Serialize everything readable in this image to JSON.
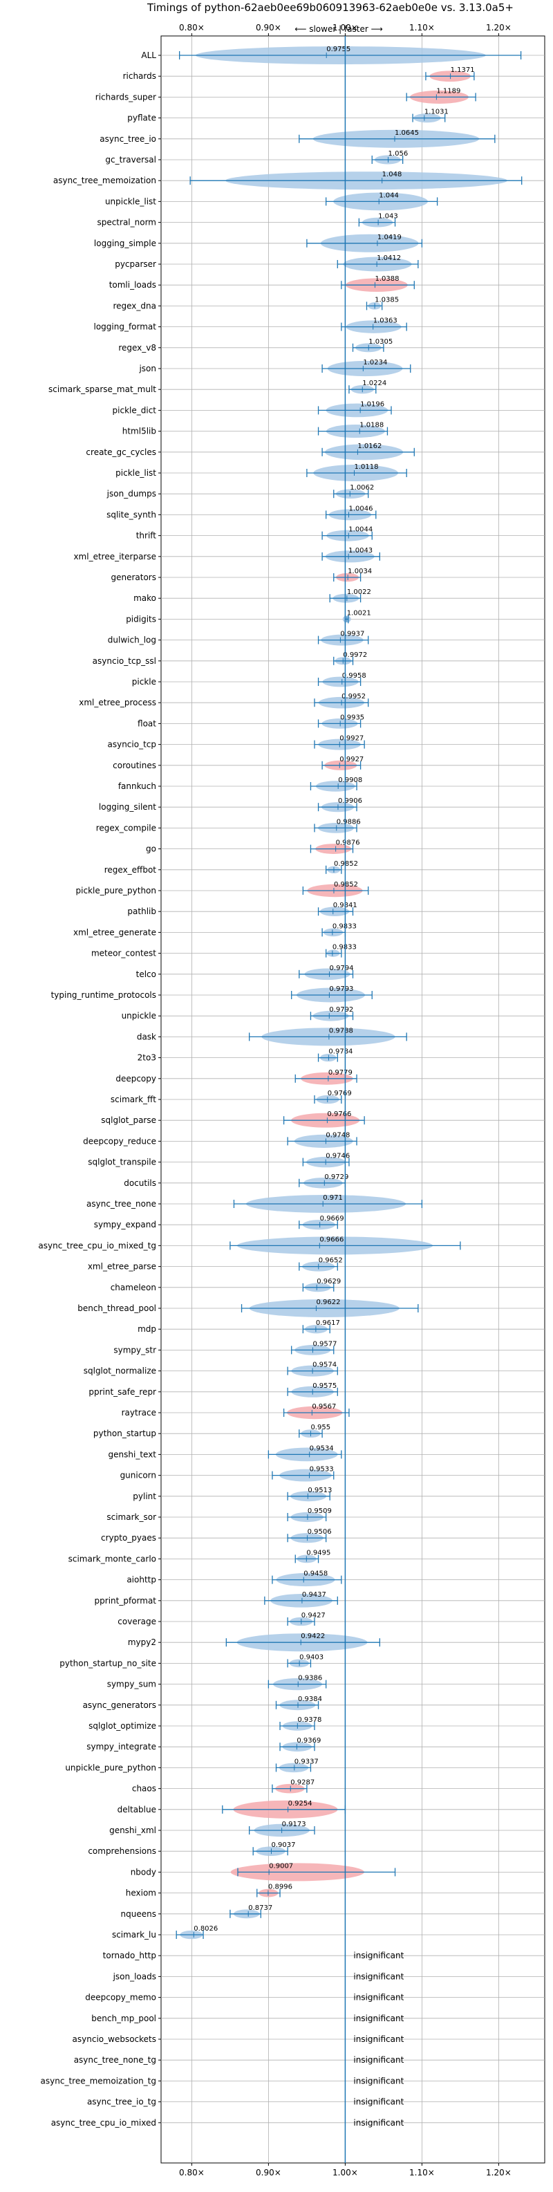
{
  "chart_data": {
    "type": "violin",
    "title": "Timings of python-62aeb0ee69b060913963-62aeb0e0e vs. 3.13.0a5+",
    "direction_note": "⟵ slower | faster ⟶",
    "xlim": [
      0.76,
      1.26
    ],
    "xticks": [
      0.8,
      0.9,
      1.0,
      1.1,
      1.2
    ],
    "xtick_labels": [
      "0.80×",
      "0.90×",
      "1.00×",
      "1.10×",
      "1.20×"
    ],
    "grid": true,
    "insignificant_label": "insignificant",
    "colors": {
      "faster": "#a9c9e6",
      "slower": "#f4a9ad",
      "line": "#1f77b4",
      "grid": "#b0b0b0"
    },
    "benchmarks": [
      {
        "name": "ALL",
        "value": 0.9755,
        "min": 0.784,
        "max": 1.229,
        "color": "faster"
      },
      {
        "name": "richards",
        "value": 1.1371,
        "min": 1.105,
        "max": 1.168,
        "color": "slower"
      },
      {
        "name": "richards_super",
        "value": 1.1189,
        "min": 1.08,
        "max": 1.17,
        "color": "slower"
      },
      {
        "name": "pyflate",
        "value": 1.1031,
        "min": 1.088,
        "max": 1.13,
        "color": "faster"
      },
      {
        "name": "async_tree_io",
        "value": 1.0645,
        "min": 0.94,
        "max": 1.195,
        "color": "faster"
      },
      {
        "name": "gc_traversal",
        "value": 1.056,
        "min": 1.035,
        "max": 1.075,
        "color": "faster"
      },
      {
        "name": "async_tree_memoization",
        "value": 1.048,
        "min": 0.798,
        "max": 1.23,
        "color": "faster"
      },
      {
        "name": "unpickle_list",
        "value": 1.044,
        "min": 0.975,
        "max": 1.12,
        "color": "faster"
      },
      {
        "name": "spectral_norm",
        "value": 1.043,
        "min": 1.018,
        "max": 1.065,
        "color": "faster"
      },
      {
        "name": "logging_simple",
        "value": 1.0419,
        "min": 0.95,
        "max": 1.1,
        "color": "faster"
      },
      {
        "name": "pycparser",
        "value": 1.0412,
        "min": 0.99,
        "max": 1.095,
        "color": "faster"
      },
      {
        "name": "tomli_loads",
        "value": 1.0388,
        "min": 0.995,
        "max": 1.09,
        "color": "slower"
      },
      {
        "name": "regex_dna",
        "value": 1.0385,
        "min": 1.028,
        "max": 1.048,
        "color": "faster"
      },
      {
        "name": "logging_format",
        "value": 1.0363,
        "min": 0.995,
        "max": 1.08,
        "color": "faster"
      },
      {
        "name": "regex_v8",
        "value": 1.0305,
        "min": 1.01,
        "max": 1.05,
        "color": "faster"
      },
      {
        "name": "json",
        "value": 1.0234,
        "min": 0.97,
        "max": 1.085,
        "color": "faster"
      },
      {
        "name": "scimark_sparse_mat_mult",
        "value": 1.0224,
        "min": 1.005,
        "max": 1.04,
        "color": "faster"
      },
      {
        "name": "pickle_dict",
        "value": 1.0196,
        "min": 0.965,
        "max": 1.06,
        "color": "faster"
      },
      {
        "name": "html5lib",
        "value": 1.0188,
        "min": 0.965,
        "max": 1.055,
        "color": "faster"
      },
      {
        "name": "create_gc_cycles",
        "value": 1.0162,
        "min": 0.97,
        "max": 1.09,
        "color": "faster"
      },
      {
        "name": "pickle_list",
        "value": 1.0118,
        "min": 0.95,
        "max": 1.08,
        "color": "faster"
      },
      {
        "name": "json_dumps",
        "value": 1.0062,
        "min": 0.985,
        "max": 1.03,
        "color": "faster"
      },
      {
        "name": "sqlite_synth",
        "value": 1.0046,
        "min": 0.975,
        "max": 1.04,
        "color": "faster"
      },
      {
        "name": "thrift",
        "value": 1.0044,
        "min": 0.97,
        "max": 1.035,
        "color": "faster"
      },
      {
        "name": "xml_etree_iterparse",
        "value": 1.0043,
        "min": 0.97,
        "max": 1.045,
        "color": "faster"
      },
      {
        "name": "generators",
        "value": 1.0034,
        "min": 0.985,
        "max": 1.02,
        "color": "slower"
      },
      {
        "name": "mako",
        "value": 1.0022,
        "min": 0.98,
        "max": 1.02,
        "color": "faster"
      },
      {
        "name": "pidigits",
        "value": 1.0021,
        "min": 1.0,
        "max": 1.004,
        "color": "faster"
      },
      {
        "name": "dulwich_log",
        "value": 0.9937,
        "min": 0.965,
        "max": 1.03,
        "color": "faster"
      },
      {
        "name": "asyncio_tcp_ssl",
        "value": 0.9972,
        "min": 0.985,
        "max": 1.01,
        "color": "faster"
      },
      {
        "name": "pickle",
        "value": 0.9958,
        "min": 0.965,
        "max": 1.02,
        "color": "faster"
      },
      {
        "name": "xml_etree_process",
        "value": 0.9952,
        "min": 0.96,
        "max": 1.03,
        "color": "faster"
      },
      {
        "name": "float",
        "value": 0.9935,
        "min": 0.965,
        "max": 1.02,
        "color": "faster"
      },
      {
        "name": "asyncio_tcp",
        "value": 0.9927,
        "min": 0.96,
        "max": 1.025,
        "color": "faster"
      },
      {
        "name": "coroutines",
        "value": 0.9927,
        "min": 0.97,
        "max": 1.02,
        "color": "slower"
      },
      {
        "name": "fannkuch",
        "value": 0.9908,
        "min": 0.955,
        "max": 1.015,
        "color": "faster"
      },
      {
        "name": "logging_silent",
        "value": 0.9906,
        "min": 0.965,
        "max": 1.015,
        "color": "faster"
      },
      {
        "name": "regex_compile",
        "value": 0.9886,
        "min": 0.96,
        "max": 1.015,
        "color": "faster"
      },
      {
        "name": "go",
        "value": 0.9876,
        "min": 0.955,
        "max": 1.01,
        "color": "slower"
      },
      {
        "name": "regex_effbot",
        "value": 0.9852,
        "min": 0.975,
        "max": 0.995,
        "color": "faster"
      },
      {
        "name": "pickle_pure_python",
        "value": 0.9852,
        "min": 0.945,
        "max": 1.03,
        "color": "slower"
      },
      {
        "name": "pathlib",
        "value": 0.9841,
        "min": 0.965,
        "max": 1.01,
        "color": "faster"
      },
      {
        "name": "xml_etree_generate",
        "value": 0.9833,
        "min": 0.97,
        "max": 1.0,
        "color": "faster"
      },
      {
        "name": "meteor_contest",
        "value": 0.9833,
        "min": 0.975,
        "max": 0.995,
        "color": "faster"
      },
      {
        "name": "telco",
        "value": 0.9794,
        "min": 0.94,
        "max": 1.01,
        "color": "faster"
      },
      {
        "name": "typing_runtime_protocols",
        "value": 0.9793,
        "min": 0.93,
        "max": 1.035,
        "color": "faster"
      },
      {
        "name": "unpickle",
        "value": 0.9792,
        "min": 0.955,
        "max": 1.01,
        "color": "faster"
      },
      {
        "name": "dask",
        "value": 0.9788,
        "min": 0.875,
        "max": 1.08,
        "color": "faster"
      },
      {
        "name": "2to3",
        "value": 0.9784,
        "min": 0.965,
        "max": 0.99,
        "color": "faster"
      },
      {
        "name": "deepcopy",
        "value": 0.9779,
        "min": 0.935,
        "max": 1.015,
        "color": "slower"
      },
      {
        "name": "scimark_fft",
        "value": 0.9769,
        "min": 0.96,
        "max": 0.995,
        "color": "faster"
      },
      {
        "name": "sqlglot_parse",
        "value": 0.9766,
        "min": 0.92,
        "max": 1.025,
        "color": "slower"
      },
      {
        "name": "deepcopy_reduce",
        "value": 0.9748,
        "min": 0.925,
        "max": 1.015,
        "color": "faster"
      },
      {
        "name": "sqlglot_transpile",
        "value": 0.9746,
        "min": 0.945,
        "max": 1.005,
        "color": "faster"
      },
      {
        "name": "docutils",
        "value": 0.9729,
        "min": 0.94,
        "max": 1.0,
        "color": "faster"
      },
      {
        "name": "async_tree_none",
        "value": 0.971,
        "min": 0.855,
        "max": 1.1,
        "color": "faster"
      },
      {
        "name": "sympy_expand",
        "value": 0.9669,
        "min": 0.94,
        "max": 0.99,
        "color": "faster"
      },
      {
        "name": "async_tree_cpu_io_mixed_tg",
        "value": 0.9666,
        "min": 0.85,
        "max": 1.15,
        "color": "faster"
      },
      {
        "name": "xml_etree_parse",
        "value": 0.9652,
        "min": 0.94,
        "max": 0.99,
        "color": "faster"
      },
      {
        "name": "chameleon",
        "value": 0.9629,
        "min": 0.945,
        "max": 0.985,
        "color": "faster"
      },
      {
        "name": "bench_thread_pool",
        "value": 0.9622,
        "min": 0.865,
        "max": 1.095,
        "color": "faster"
      },
      {
        "name": "mdp",
        "value": 0.9617,
        "min": 0.945,
        "max": 0.98,
        "color": "faster"
      },
      {
        "name": "sympy_str",
        "value": 0.9577,
        "min": 0.93,
        "max": 0.985,
        "color": "faster"
      },
      {
        "name": "sqlglot_normalize",
        "value": 0.9574,
        "min": 0.925,
        "max": 0.99,
        "color": "faster"
      },
      {
        "name": "pprint_safe_repr",
        "value": 0.9575,
        "min": 0.925,
        "max": 0.99,
        "color": "faster"
      },
      {
        "name": "raytrace",
        "value": 0.9567,
        "min": 0.92,
        "max": 1.005,
        "color": "slower"
      },
      {
        "name": "python_startup",
        "value": 0.955,
        "min": 0.94,
        "max": 0.97,
        "color": "faster"
      },
      {
        "name": "genshi_text",
        "value": 0.9534,
        "min": 0.9,
        "max": 0.995,
        "color": "faster"
      },
      {
        "name": "gunicorn",
        "value": 0.9533,
        "min": 0.905,
        "max": 0.985,
        "color": "faster"
      },
      {
        "name": "pylint",
        "value": 0.9513,
        "min": 0.925,
        "max": 0.98,
        "color": "faster"
      },
      {
        "name": "scimark_sor",
        "value": 0.9509,
        "min": 0.925,
        "max": 0.975,
        "color": "faster"
      },
      {
        "name": "crypto_pyaes",
        "value": 0.9506,
        "min": 0.925,
        "max": 0.975,
        "color": "faster"
      },
      {
        "name": "scimark_monte_carlo",
        "value": 0.9495,
        "min": 0.935,
        "max": 0.965,
        "color": "faster"
      },
      {
        "name": "aiohttp",
        "value": 0.9458,
        "min": 0.905,
        "max": 0.995,
        "color": "faster"
      },
      {
        "name": "pprint_pformat",
        "value": 0.9437,
        "min": 0.895,
        "max": 0.99,
        "color": "faster"
      },
      {
        "name": "coverage",
        "value": 0.9427,
        "min": 0.925,
        "max": 0.96,
        "color": "faster"
      },
      {
        "name": "mypy2",
        "value": 0.9422,
        "min": 0.845,
        "max": 1.045,
        "color": "faster"
      },
      {
        "name": "python_startup_no_site",
        "value": 0.9403,
        "min": 0.925,
        "max": 0.955,
        "color": "faster"
      },
      {
        "name": "sympy_sum",
        "value": 0.9386,
        "min": 0.9,
        "max": 0.975,
        "color": "faster"
      },
      {
        "name": "async_generators",
        "value": 0.9384,
        "min": 0.91,
        "max": 0.965,
        "color": "faster"
      },
      {
        "name": "sqlglot_optimize",
        "value": 0.9378,
        "min": 0.915,
        "max": 0.96,
        "color": "faster"
      },
      {
        "name": "sympy_integrate",
        "value": 0.9369,
        "min": 0.915,
        "max": 0.96,
        "color": "faster"
      },
      {
        "name": "unpickle_pure_python",
        "value": 0.9337,
        "min": 0.91,
        "max": 0.955,
        "color": "faster"
      },
      {
        "name": "chaos",
        "value": 0.9287,
        "min": 0.905,
        "max": 0.95,
        "color": "slower"
      },
      {
        "name": "deltablue",
        "value": 0.9254,
        "min": 0.84,
        "max": 1.0,
        "color": "slower"
      },
      {
        "name": "genshi_xml",
        "value": 0.9173,
        "min": 0.875,
        "max": 0.96,
        "color": "faster"
      },
      {
        "name": "comprehensions",
        "value": 0.9037,
        "min": 0.88,
        "max": 0.925,
        "color": "faster"
      },
      {
        "name": "nbody",
        "value": 0.9007,
        "min": 0.86,
        "max": 1.065,
        "color": "slower"
      },
      {
        "name": "hexiom",
        "value": 0.8996,
        "min": 0.885,
        "max": 0.915,
        "color": "slower"
      },
      {
        "name": "nqueens",
        "value": 0.8737,
        "min": 0.85,
        "max": 0.89,
        "color": "faster"
      },
      {
        "name": "scimark_lu",
        "value": 0.8026,
        "min": 0.78,
        "max": 0.815,
        "color": "faster"
      },
      {
        "name": "tornado_http",
        "value": null,
        "insignificant": true
      },
      {
        "name": "json_loads",
        "value": null,
        "insignificant": true
      },
      {
        "name": "deepcopy_memo",
        "value": null,
        "insignificant": true
      },
      {
        "name": "bench_mp_pool",
        "value": null,
        "insignificant": true
      },
      {
        "name": "asyncio_websockets",
        "value": null,
        "insignificant": true
      },
      {
        "name": "async_tree_none_tg",
        "value": null,
        "insignificant": true
      },
      {
        "name": "async_tree_memoization_tg",
        "value": null,
        "insignificant": true
      },
      {
        "name": "async_tree_io_tg",
        "value": null,
        "insignificant": true
      },
      {
        "name": "async_tree_cpu_io_mixed",
        "value": null,
        "insignificant": true
      }
    ]
  }
}
